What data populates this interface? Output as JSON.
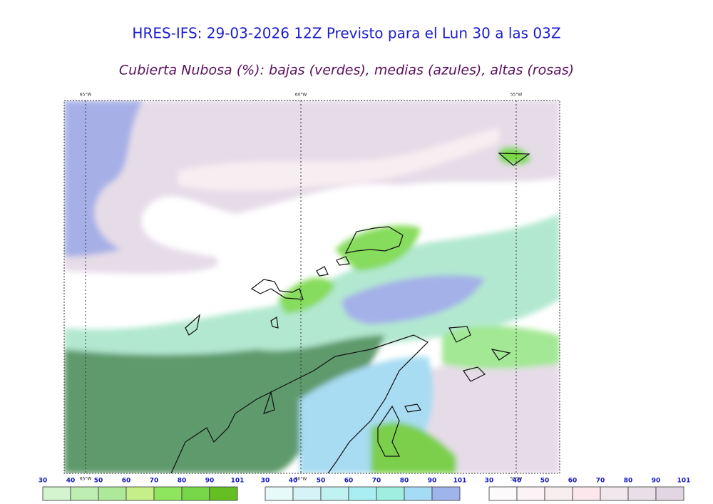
{
  "header": {
    "title": "HRES-IFS: 29-03-2026 12Z Previsto para el Lun 30 a las 03Z",
    "subtitle": "Cubierta Nubosa (%): bajas (verdes), medias (azules), altas (rosas)"
  },
  "map": {
    "lon_labels": [
      "65°W",
      "60°W",
      "55°W"
    ]
  },
  "colorbars": [
    {
      "ticks": [
        "30",
        "40",
        "50",
        "60",
        "70",
        "80",
        "90",
        "101"
      ],
      "colors": [
        "#d4f3cf",
        "#bfeeb2",
        "#ade999",
        "#c6ef8a",
        "#8fe55e",
        "#78d649",
        "#66bf22"
      ]
    },
    {
      "ticks": [
        "30",
        "40",
        "50",
        "60",
        "70",
        "80",
        "90",
        "101"
      ],
      "colors": [
        "#e6fafa",
        "#d6f3f7",
        "#c0f2f2",
        "#a9eef0",
        "#a0eee0",
        "#a5dcf5",
        "#a0b4ec"
      ]
    },
    {
      "ticks": [
        "30",
        "40",
        "50",
        "60",
        "70",
        "80",
        "90",
        "101"
      ],
      "colors": [
        "#fdfafb",
        "#fbf3f5",
        "#f8eef0",
        "#fbe7ec",
        "#f1e8ee",
        "#e8dfe8",
        "#e2d6e2"
      ]
    }
  ]
}
